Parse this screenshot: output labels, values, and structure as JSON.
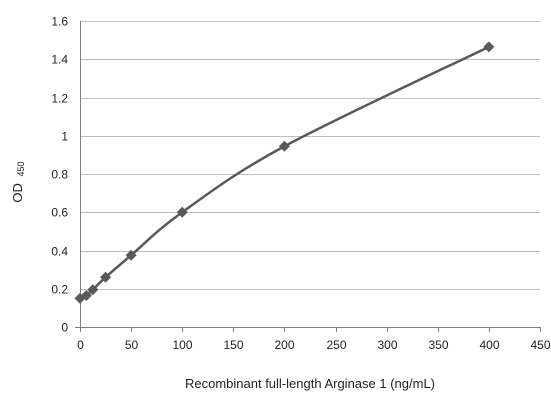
{
  "chart_data": {
    "type": "line",
    "title": "",
    "xlabel": "Recombinant full-length Arginase 1 (ng/mL)",
    "ylabel": "OD",
    "ylabel_subscript": "450",
    "xlim": [
      0,
      450
    ],
    "ylim": [
      0,
      1.6
    ],
    "xticks": [
      "0",
      "50",
      "100",
      "150",
      "200",
      "250",
      "300",
      "350",
      "400",
      "450"
    ],
    "yticks": [
      "0",
      "0.2",
      "0.4",
      "0.6",
      "0.8",
      "1",
      "1.2",
      "1.4",
      "1.6"
    ],
    "grid": "horizontal",
    "series": [
      {
        "color": "#595959",
        "marker": "diamond",
        "smooth": true,
        "x": [
          0,
          6.25,
          12.5,
          25,
          50,
          100,
          200,
          400
        ],
        "y": [
          0.15,
          0.165,
          0.195,
          0.26,
          0.375,
          0.6,
          0.945,
          1.465
        ]
      }
    ]
  }
}
